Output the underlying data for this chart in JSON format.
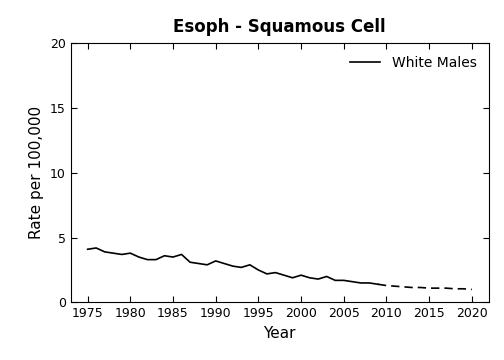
{
  "title": "Esoph - Squamous Cell",
  "xlabel": "Year",
  "ylabel": "Rate per 100,000",
  "xlim": [
    1973,
    2022
  ],
  "ylim": [
    0,
    20
  ],
  "yticks": [
    0,
    5,
    10,
    15,
    20
  ],
  "xticks": [
    1975,
    1980,
    1985,
    1990,
    1995,
    2000,
    2005,
    2010,
    2015,
    2020
  ],
  "actual_years": [
    1975,
    1976,
    1977,
    1978,
    1979,
    1980,
    1981,
    1982,
    1983,
    1984,
    1985,
    1986,
    1987,
    1988,
    1989,
    1990,
    1991,
    1992,
    1993,
    1994,
    1995,
    1996,
    1997,
    1998,
    1999,
    2000,
    2001,
    2002,
    2003,
    2004,
    2005,
    2006,
    2007,
    2008,
    2009
  ],
  "actual_rates": [
    4.1,
    4.2,
    3.9,
    3.8,
    3.7,
    3.8,
    3.5,
    3.3,
    3.3,
    3.6,
    3.5,
    3.7,
    3.1,
    3.0,
    2.9,
    3.2,
    3.0,
    2.8,
    2.7,
    2.9,
    2.5,
    2.2,
    2.3,
    2.1,
    1.9,
    2.1,
    1.9,
    1.8,
    2.0,
    1.7,
    1.7,
    1.6,
    1.5,
    1.5,
    1.4
  ],
  "projected_years": [
    2009,
    2010,
    2011,
    2012,
    2013,
    2014,
    2015,
    2016,
    2017,
    2018,
    2019,
    2020
  ],
  "projected_rates": [
    1.4,
    1.3,
    1.25,
    1.2,
    1.15,
    1.15,
    1.1,
    1.1,
    1.1,
    1.05,
    1.05,
    1.0
  ],
  "legend_label": "White Males",
  "line_color": "#000000",
  "background_color": "#ffffff",
  "title_fontsize": 12,
  "axis_fontsize": 11,
  "tick_fontsize": 9,
  "legend_fontsize": 10
}
